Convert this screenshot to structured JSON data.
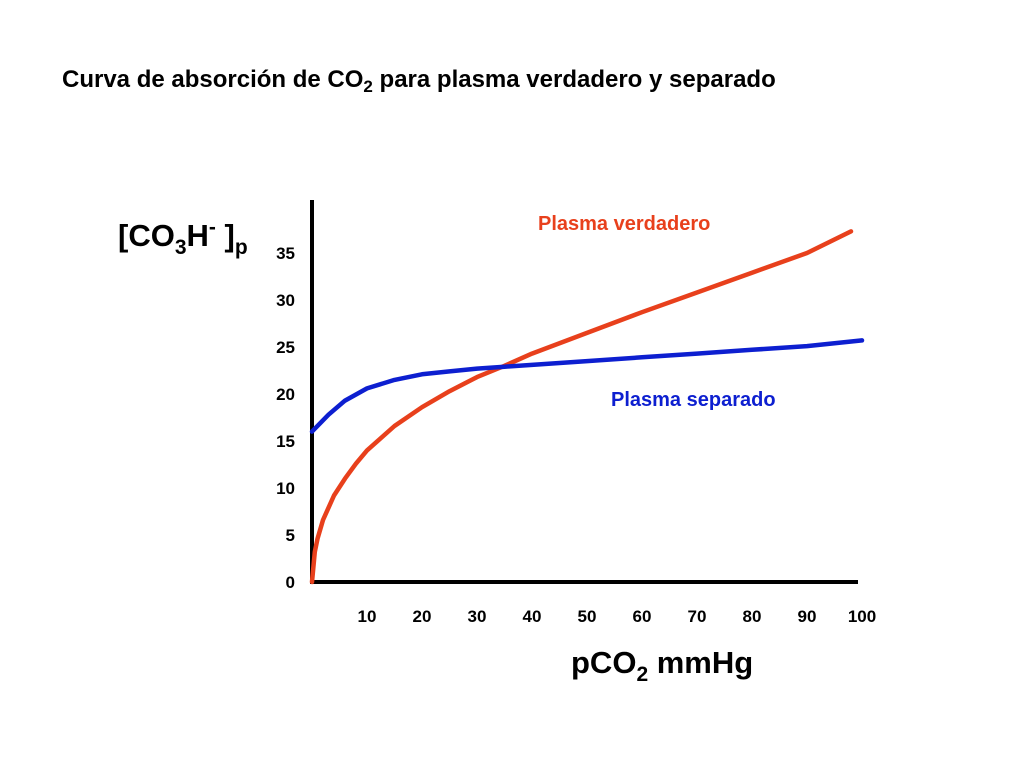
{
  "chart_data": {
    "type": "line",
    "title_parts": {
      "before": "Curva de absorción de CO",
      "sub": "2",
      "after": " para plasma verdadero y separado"
    },
    "ylabel_parts": {
      "open": "[CO",
      "sub1": "3",
      "mid": "H",
      "sup": "-",
      "close": " ]",
      "sub2": "p"
    },
    "xlabel_parts": {
      "before": "pCO",
      "sub": "2",
      "after": " mmHg"
    },
    "x_ticks": [
      "10",
      "20",
      "30",
      "40",
      "50",
      "60",
      "70",
      "80",
      "90",
      "100"
    ],
    "y_ticks": [
      "0",
      "5",
      "10",
      "15",
      "20",
      "25",
      "30",
      "35"
    ],
    "xlim": [
      0,
      100
    ],
    "ylim": [
      0,
      35
    ],
    "grid": false,
    "series": [
      {
        "name": "Plasma verdadero",
        "color": "#e8401c",
        "points": [
          [
            0,
            0
          ],
          [
            0.5,
            3.2
          ],
          [
            1,
            4.6
          ],
          [
            2,
            6.6
          ],
          [
            4,
            9.2
          ],
          [
            6,
            11.0
          ],
          [
            8,
            12.6
          ],
          [
            10,
            14.0
          ],
          [
            15,
            16.6
          ],
          [
            20,
            18.6
          ],
          [
            25,
            20.3
          ],
          [
            30,
            21.8
          ],
          [
            35,
            23.0
          ],
          [
            40,
            24.3
          ],
          [
            50,
            26.5
          ],
          [
            60,
            28.7
          ],
          [
            70,
            30.8
          ],
          [
            80,
            32.9
          ],
          [
            90,
            35.0
          ],
          [
            98,
            37.3
          ]
        ]
      },
      {
        "name": "Plasma separado",
        "color": "#0d1fd0",
        "points": [
          [
            0,
            16.0
          ],
          [
            3,
            17.8
          ],
          [
            6,
            19.3
          ],
          [
            10,
            20.6
          ],
          [
            15,
            21.5
          ],
          [
            20,
            22.1
          ],
          [
            25,
            22.4
          ],
          [
            30,
            22.7
          ],
          [
            35,
            22.9
          ],
          [
            40,
            23.1
          ],
          [
            50,
            23.5
          ],
          [
            60,
            23.9
          ],
          [
            70,
            24.3
          ],
          [
            80,
            24.7
          ],
          [
            90,
            25.1
          ],
          [
            100,
            25.7
          ]
        ]
      }
    ]
  }
}
